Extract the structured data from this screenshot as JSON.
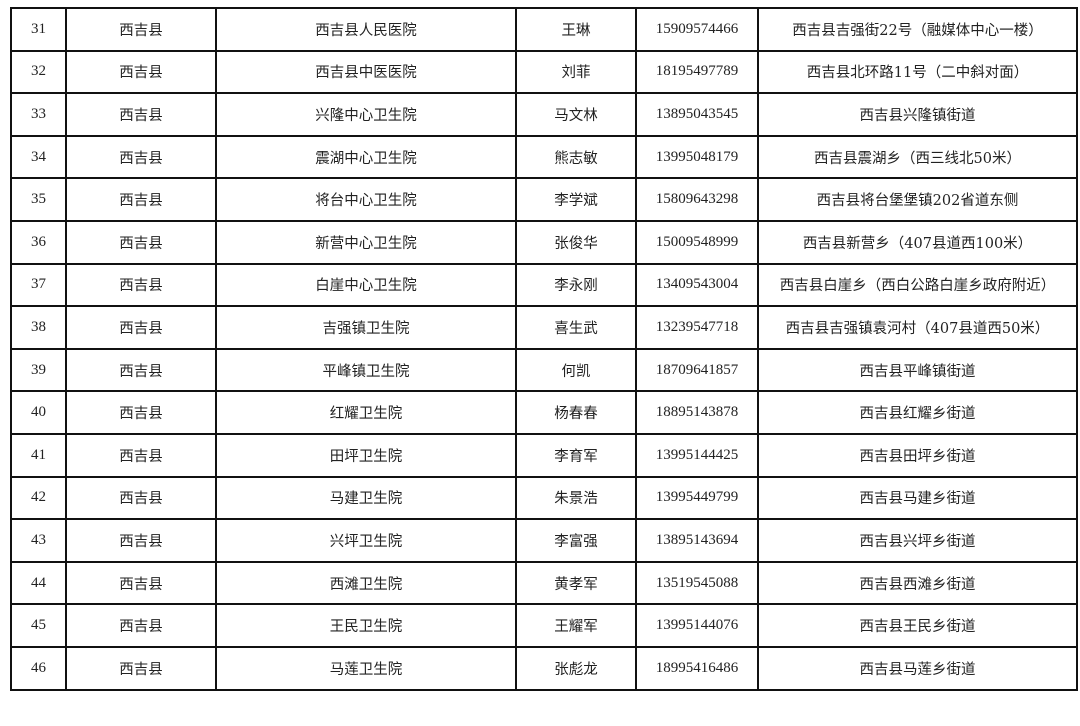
{
  "rows": [
    {
      "no": "31",
      "county": "西吉县",
      "institution": "西吉县人民医院",
      "contact": "王琳",
      "phone": "15909574466",
      "address": "西吉县吉强街22号（融媒体中心一楼）"
    },
    {
      "no": "32",
      "county": "西吉县",
      "institution": "西吉县中医医院",
      "contact": "刘菲",
      "phone": "18195497789",
      "address": "西吉县北环路11号（二中斜对面）"
    },
    {
      "no": "33",
      "county": "西吉县",
      "institution": "兴隆中心卫生院",
      "contact": "马文林",
      "phone": "13895043545",
      "address": "西吉县兴隆镇街道"
    },
    {
      "no": "34",
      "county": "西吉县",
      "institution": "震湖中心卫生院",
      "contact": "熊志敏",
      "phone": "13995048179",
      "address": "西吉县震湖乡（西三线北50米）"
    },
    {
      "no": "35",
      "county": "西吉县",
      "institution": "将台中心卫生院",
      "contact": "李学斌",
      "phone": "15809643298",
      "address": "西吉县将台堡堡镇202省道东侧"
    },
    {
      "no": "36",
      "county": "西吉县",
      "institution": "新营中心卫生院",
      "contact": "张俊华",
      "phone": "15009548999",
      "address": "西吉县新营乡（407县道西100米）"
    },
    {
      "no": "37",
      "county": "西吉县",
      "institution": "白崖中心卫生院",
      "contact": "李永刚",
      "phone": "13409543004",
      "address": "西吉县白崖乡（西白公路白崖乡政府附近）"
    },
    {
      "no": "38",
      "county": "西吉县",
      "institution": "吉强镇卫生院",
      "contact": "喜生武",
      "phone": "13239547718",
      "address": "西吉县吉强镇袁河村（407县道西50米）"
    },
    {
      "no": "39",
      "county": "西吉县",
      "institution": "平峰镇卫生院",
      "contact": "何凯",
      "phone": "18709641857",
      "address": "西吉县平峰镇街道"
    },
    {
      "no": "40",
      "county": "西吉县",
      "institution": "红耀卫生院",
      "contact": "杨春春",
      "phone": "18895143878",
      "address": "西吉县红耀乡街道"
    },
    {
      "no": "41",
      "county": "西吉县",
      "institution": "田坪卫生院",
      "contact": "李育军",
      "phone": "13995144425",
      "address": "西吉县田坪乡街道"
    },
    {
      "no": "42",
      "county": "西吉县",
      "institution": "马建卫生院",
      "contact": "朱景浩",
      "phone": "13995449799",
      "address": "西吉县马建乡街道"
    },
    {
      "no": "43",
      "county": "西吉县",
      "institution": "兴坪卫生院",
      "contact": "李富强",
      "phone": "13895143694",
      "address": "西吉县兴坪乡街道"
    },
    {
      "no": "44",
      "county": "西吉县",
      "institution": "西滩卫生院",
      "contact": "黄孝军",
      "phone": "13519545088",
      "address": "西吉县西滩乡街道"
    },
    {
      "no": "45",
      "county": "西吉县",
      "institution": "王民卫生院",
      "contact": "王耀军",
      "phone": "13995144076",
      "address": "西吉县王民乡街道"
    },
    {
      "no": "46",
      "county": "西吉县",
      "institution": "马莲卫生院",
      "contact": "张彪龙",
      "phone": "18995416486",
      "address": "西吉县马莲乡街道"
    }
  ]
}
